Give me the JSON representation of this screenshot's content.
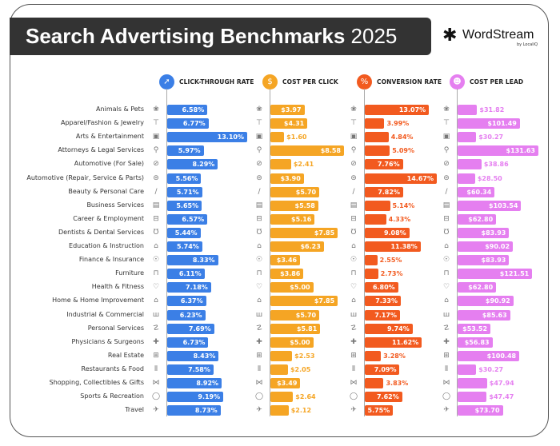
{
  "title": {
    "bold": "Search Advertising Benchmarks",
    "year": "2025"
  },
  "logo": {
    "name": "WordStream",
    "sub": "by LocaliQ"
  },
  "chart_data": {
    "type": "bar",
    "orientation": "horizontal",
    "categories": [
      "Animals & Pets",
      "Apparel/Fashion & Jewelry",
      "Arts & Entertainment",
      "Attorneys & Legal Services",
      "Automotive (For Sale)",
      "Automotive (Repair, Service & Parts)",
      "Beauty & Personal Care",
      "Business Services",
      "Career & Employment",
      "Dentists & Dental Services",
      "Education & Instruction",
      "Finance & Insurance",
      "Furniture",
      "Health & Fitness",
      "Home & Home Improvement",
      "Industrial & Commercial",
      "Personal Services",
      "Physicians & Surgeons",
      "Real Estate",
      "Restaurants & Food",
      "Shopping, Collectibles & Gifts",
      "Sports & Recreation",
      "Travel"
    ],
    "category_icons": [
      "paw-icon",
      "shirt-icon",
      "picture-icon",
      "gavel-icon",
      "car-tag-icon",
      "car-icon",
      "brush-icon",
      "document-icon",
      "briefcase-icon",
      "tooth-icon",
      "graduation-cap-icon",
      "piggy-bank-icon",
      "sofa-icon",
      "heart-icon",
      "house-icon",
      "factory-icon",
      "hand-icon",
      "medical-cross-icon",
      "storefront-icon",
      "fork-knife-icon",
      "gift-bow-icon",
      "ball-icon",
      "airplane-icon"
    ],
    "series": [
      {
        "name": "CLICK-THROUGH RATE",
        "color": "#3b7fe6",
        "icon": "cursor-icon",
        "prefix": "",
        "suffix": "%",
        "values": [
          6.58,
          6.77,
          13.1,
          5.97,
          8.29,
          5.56,
          5.71,
          5.65,
          6.57,
          5.44,
          5.74,
          8.33,
          6.11,
          7.18,
          6.37,
          6.23,
          7.69,
          6.73,
          8.43,
          7.58,
          8.92,
          9.19,
          8.73
        ]
      },
      {
        "name": "COST PER CLICK",
        "color": "#f5a524",
        "icon": "cursor-dollar-icon",
        "prefix": "$",
        "suffix": "",
        "values": [
          3.97,
          4.31,
          1.6,
          8.58,
          2.41,
          3.9,
          5.7,
          5.58,
          5.16,
          7.85,
          6.23,
          3.46,
          3.86,
          5.0,
          7.85,
          5.7,
          5.81,
          5.0,
          2.53,
          2.05,
          3.49,
          2.64,
          2.12
        ]
      },
      {
        "name": "CONVERSION RATE",
        "color": "#f25a1f",
        "icon": "percent-icon",
        "prefix": "",
        "suffix": "%",
        "values": [
          13.07,
          3.99,
          4.84,
          5.09,
          7.76,
          14.67,
          7.82,
          5.14,
          4.33,
          9.08,
          11.38,
          2.55,
          2.73,
          6.8,
          7.33,
          7.17,
          9.74,
          11.62,
          3.28,
          7.09,
          3.83,
          7.62,
          5.75
        ]
      },
      {
        "name": "COST PER LEAD",
        "color": "#e57ff0",
        "icon": "people-dollar-icon",
        "prefix": "$",
        "suffix": "",
        "values": [
          31.82,
          101.49,
          30.27,
          131.63,
          38.86,
          28.5,
          60.34,
          103.54,
          62.8,
          83.93,
          90.02,
          83.93,
          121.51,
          62.8,
          90.92,
          85.63,
          53.52,
          56.83,
          100.48,
          30.27,
          47.94,
          47.47,
          73.7
        ]
      }
    ],
    "grid": false,
    "legend": "top"
  }
}
